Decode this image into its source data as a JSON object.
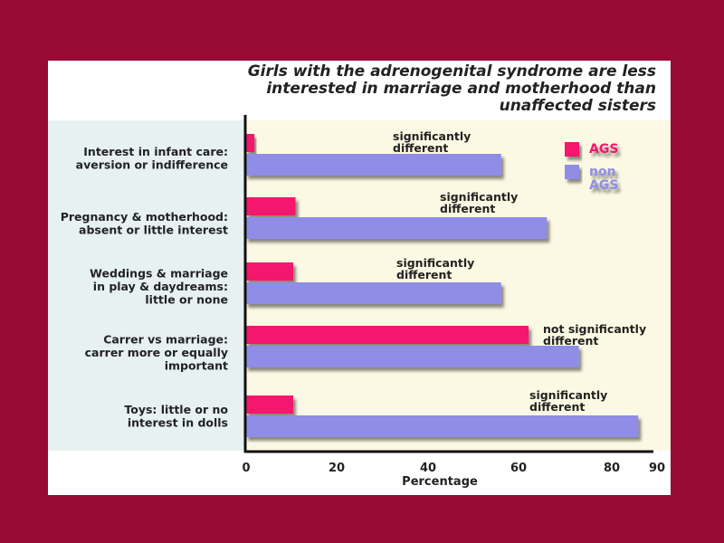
{
  "colors": {
    "background": "#970a32",
    "card": "#ffffff",
    "label_panel": "#e7f1f1",
    "plot_area": "#fbf9e3",
    "ags": "#f5176d",
    "non_ags": "#8f8de6",
    "axis": "#111111",
    "text": "#222222"
  },
  "chart_data": {
    "type": "bar",
    "orientation": "horizontal",
    "title_lines": [
      "Girls with the adrenogenital syndrome are less",
      "interested in marriage and motherhood than",
      "unaffected sisters"
    ],
    "xlabel": "Percentage",
    "ylabel": "",
    "xlim": [
      0,
      90
    ],
    "xticks": [
      "0",
      "20",
      "40",
      "60",
      "80",
      "90"
    ],
    "grid": false,
    "legend_position": "top-right",
    "legend": [
      {
        "lines": [
          "AGS"
        ],
        "color": "#f5176d"
      },
      {
        "lines": [
          "non",
          "AGS"
        ],
        "color": "#8f8de6"
      }
    ],
    "categories": [
      {
        "lines": [
          "Interest in infant care:",
          "aversion or indifference"
        ]
      },
      {
        "lines": [
          "Pregnancy & motherhood:",
          "absent or little interest"
        ]
      },
      {
        "lines": [
          "Weddings & marriage",
          "in play & daydreams:",
          "little or none"
        ]
      },
      {
        "lines": [
          "Carrer vs marriage:",
          "carrer more or equally",
          "important"
        ]
      },
      {
        "lines": [
          "Toys: little or no",
          "interest in dolls"
        ]
      }
    ],
    "series": [
      {
        "name": "AGS",
        "values": [
          2,
          11,
          10.5,
          62,
          10.5
        ]
      },
      {
        "name": "non AGS",
        "values": [
          56,
          66,
          56,
          73,
          86
        ]
      }
    ],
    "annotations": [
      [
        "significantly",
        "different"
      ],
      [
        "significantly",
        "different"
      ],
      [
        "significantly",
        "different"
      ],
      [
        "not significantly",
        "different"
      ],
      [
        "significantly",
        "different"
      ]
    ]
  }
}
